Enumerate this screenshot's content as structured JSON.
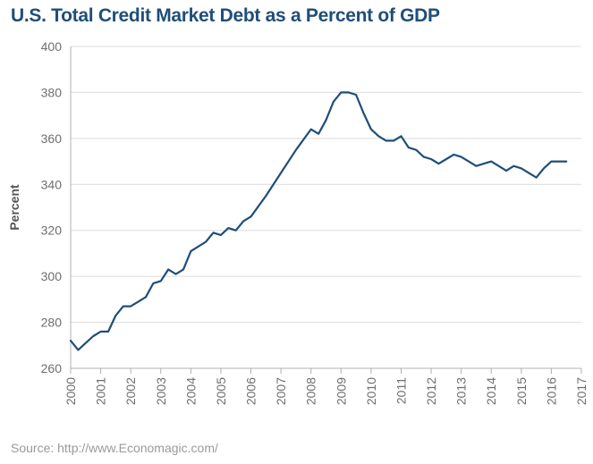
{
  "title": "U.S. Total Credit Market Debt as a Percent of GDP",
  "source": "Source: http://www.Economagic.com/",
  "colors": {
    "title": "#1f4e79",
    "line": "#1f4e79",
    "grid": "#dcdcdc",
    "axis": "#b0b0b0"
  },
  "chart_data": {
    "type": "line",
    "title": "U.S. Total Credit Market Debt as a Percent of GDP",
    "xlabel": "",
    "ylabel": "Percent",
    "xlim": [
      2000,
      2017
    ],
    "ylim": [
      260,
      400
    ],
    "grid": "horizontal",
    "yticks": [
      260,
      280,
      300,
      320,
      340,
      360,
      380,
      400
    ],
    "xticks": [
      2000,
      2001,
      2002,
      2003,
      2004,
      2005,
      2006,
      2007,
      2008,
      2009,
      2010,
      2011,
      2012,
      2013,
      2014,
      2015,
      2016,
      2017
    ],
    "series": [
      {
        "x": [
          2000.0,
          2000.25,
          2000.5,
          2000.75,
          2001.0,
          2001.25,
          2001.5,
          2001.75,
          2002.0,
          2002.25,
          2002.5,
          2002.75,
          2003.0,
          2003.25,
          2003.5,
          2003.75,
          2004.0,
          2004.25,
          2004.5,
          2004.75,
          2005.0,
          2005.25,
          2005.5,
          2005.75,
          2006.0,
          2006.5,
          2007.0,
          2007.5,
          2008.0,
          2008.25,
          2008.5,
          2008.75,
          2009.0,
          2009.25,
          2009.5,
          2009.75,
          2010.0,
          2010.25,
          2010.5,
          2010.75,
          2011.0,
          2011.25,
          2011.5,
          2011.75,
          2012.0,
          2012.25,
          2012.5,
          2012.75,
          2013.0,
          2013.25,
          2013.5,
          2013.75,
          2014.0,
          2014.25,
          2014.5,
          2014.75,
          2015.0,
          2015.25,
          2015.5,
          2015.75,
          2016.0,
          2016.25,
          2016.5
        ],
        "y": [
          272,
          268,
          271,
          274,
          276,
          276,
          283,
          287,
          287,
          289,
          291,
          297,
          298,
          303,
          301,
          303,
          311,
          313,
          315,
          319,
          318,
          321,
          320,
          324,
          326,
          335,
          345,
          355,
          364,
          362,
          368,
          376,
          380,
          380,
          379,
          371,
          364,
          361,
          359,
          359,
          361,
          356,
          355,
          352,
          351,
          349,
          351,
          353,
          352,
          350,
          348,
          349,
          350,
          348,
          346,
          348,
          347,
          345,
          343,
          347,
          350,
          350,
          350
        ]
      }
    ]
  }
}
